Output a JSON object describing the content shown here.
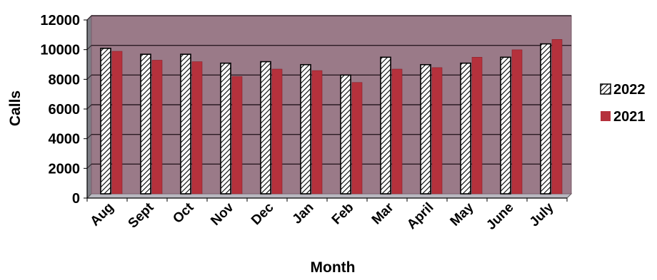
{
  "chart_data": {
    "type": "bar",
    "title": "",
    "xlabel": "Month",
    "ylabel": "Calls",
    "categories": [
      "Aug",
      "Sept",
      "Oct",
      "Nov",
      "Dec",
      "Jan",
      "Feb",
      "Mar",
      "April",
      "May",
      "June",
      "July"
    ],
    "series": [
      {
        "name": "2022",
        "pattern": "diagonal-hatch",
        "color": "#ffffff",
        "values": [
          9800,
          9400,
          9400,
          8800,
          8900,
          8700,
          8000,
          9200,
          8700,
          8800,
          9200,
          10100
        ]
      },
      {
        "name": "2021",
        "color": "#b5313c",
        "values": [
          9600,
          9000,
          8900,
          7900,
          8400,
          8300,
          7500,
          8400,
          8500,
          9200,
          9700,
          10400
        ]
      }
    ],
    "ylim": [
      0,
      12000
    ],
    "yticks": [
      "0",
      "2000",
      "4000",
      "6000",
      "8000",
      "10000",
      "12000"
    ],
    "grid": true,
    "legend": "right",
    "plot_background": "#9a7a88"
  }
}
